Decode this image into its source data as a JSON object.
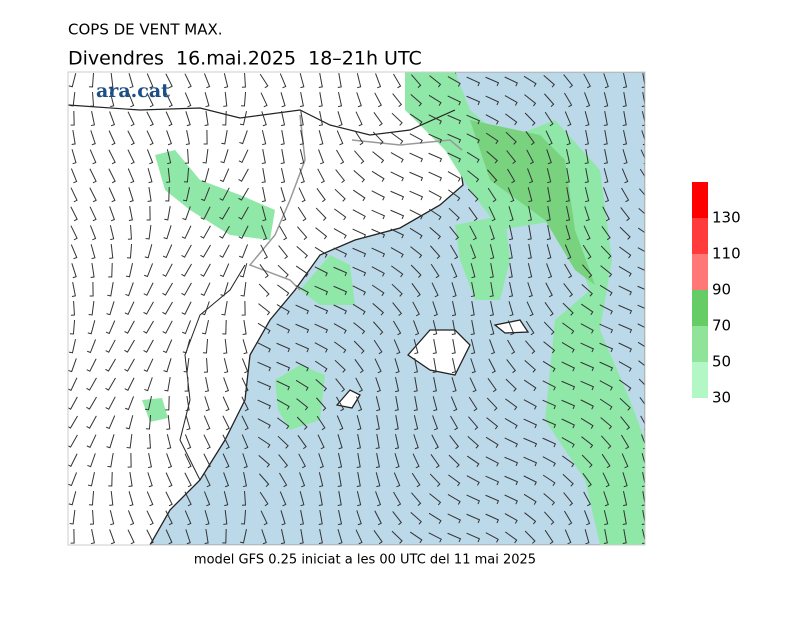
{
  "header": {
    "title": "COPS DE VENT MAX.",
    "subtitle": "Divendres  16.mai.2025  18–21h UTC",
    "logo": "ara.cat"
  },
  "legend": {
    "ticks": [
      30,
      50,
      70,
      90,
      110,
      130
    ],
    "colors": [
      "#b3f7c6",
      "#8fe49a",
      "#66cc66",
      "#ff7777",
      "#ff3b3b",
      "#ff0000"
    ]
  },
  "footer": "model GFS 0.25 iniciat a les 00 UTC del 11 mai 2025"
}
